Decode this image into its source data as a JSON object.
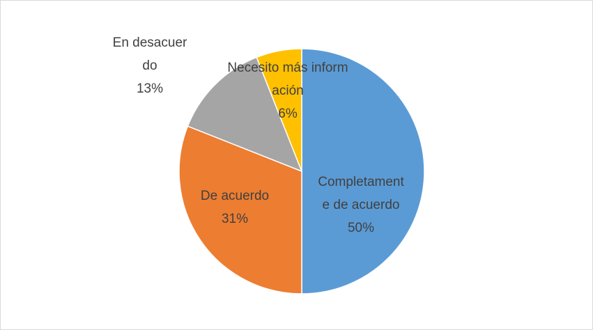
{
  "chart_data": {
    "type": "pie",
    "categories": [
      "Completamente de acuerdo",
      "De acuerdo",
      "En desacuerdo",
      "Necesito más información"
    ],
    "values": [
      50,
      31,
      13,
      6
    ],
    "value_labels": [
      "50%",
      "31%",
      "13%",
      "6%"
    ],
    "colors": [
      "#5b9bd5",
      "#ed7d31",
      "#a5a5a5",
      "#ffc000"
    ]
  }
}
